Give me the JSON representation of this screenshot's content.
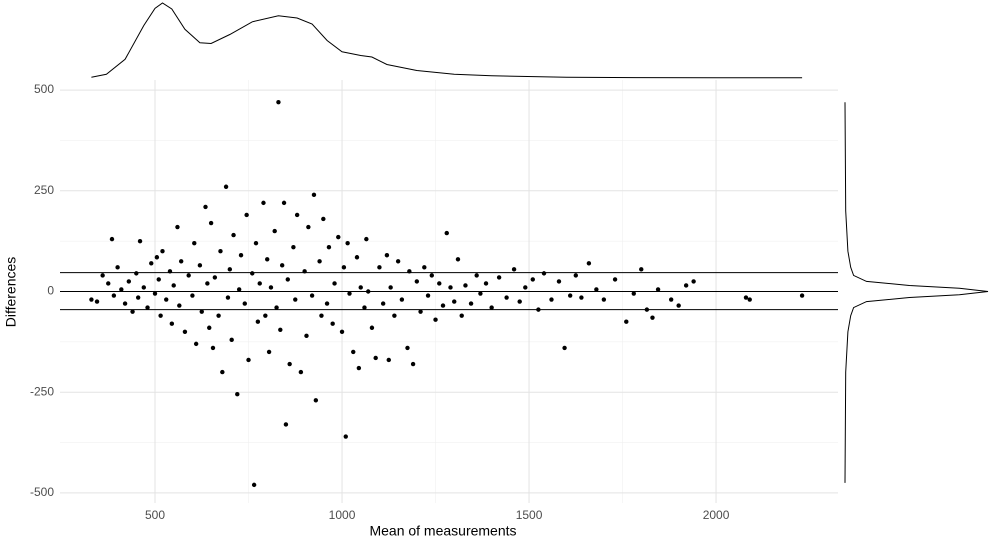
{
  "chart_data": {
    "type": "scatter",
    "x_label": "Mean of measurements",
    "y_label": "Differences",
    "xlim": [
      246,
      2326
    ],
    "ylim": [
      -525,
      525
    ],
    "xticks": [
      500,
      1000,
      1500,
      2000
    ],
    "yticks": [
      -500,
      -250,
      0,
      250,
      500
    ],
    "minor_xticks": [
      750,
      1250,
      1750
    ],
    "minor_yticks": [
      -375,
      -125,
      125,
      375
    ],
    "grid": true,
    "color": "#000000",
    "hlines": [
      47,
      0,
      -45
    ],
    "x": [
      330,
      345,
      360,
      375,
      385,
      390,
      400,
      410,
      420,
      430,
      440,
      450,
      455,
      460,
      470,
      480,
      490,
      500,
      505,
      510,
      515,
      520,
      530,
      540,
      545,
      550,
      560,
      565,
      570,
      580,
      590,
      600,
      605,
      610,
      620,
      625,
      635,
      640,
      645,
      650,
      655,
      660,
      670,
      675,
      680,
      690,
      695,
      700,
      705,
      710,
      720,
      725,
      730,
      740,
      745,
      750,
      760,
      765,
      770,
      775,
      780,
      790,
      795,
      800,
      805,
      810,
      820,
      825,
      830,
      835,
      840,
      845,
      850,
      855,
      860,
      870,
      875,
      880,
      890,
      900,
      905,
      910,
      920,
      925,
      930,
      940,
      945,
      950,
      960,
      965,
      975,
      980,
      990,
      1000,
      1005,
      1010,
      1015,
      1020,
      1030,
      1040,
      1045,
      1050,
      1060,
      1065,
      1070,
      1080,
      1090,
      1100,
      1110,
      1120,
      1125,
      1130,
      1140,
      1150,
      1160,
      1175,
      1180,
      1190,
      1200,
      1210,
      1220,
      1230,
      1240,
      1250,
      1260,
      1270,
      1280,
      1290,
      1300,
      1310,
      1320,
      1330,
      1345,
      1360,
      1370,
      1385,
      1400,
      1420,
      1440,
      1460,
      1475,
      1490,
      1510,
      1525,
      1540,
      1560,
      1580,
      1595,
      1610,
      1625,
      1640,
      1660,
      1680,
      1700,
      1730,
      1760,
      1780,
      1800,
      1815,
      1830,
      1845,
      1880,
      1900,
      1920,
      1940,
      2080,
      2090,
      2230
    ],
    "values": [
      -20,
      -25,
      40,
      20,
      130,
      -10,
      60,
      5,
      -30,
      25,
      -50,
      45,
      -15,
      125,
      10,
      -40,
      70,
      -5,
      85,
      30,
      -60,
      100,
      -20,
      50,
      -80,
      15,
      160,
      -35,
      75,
      -100,
      40,
      -10,
      120,
      -130,
      65,
      -50,
      210,
      20,
      -90,
      170,
      -140,
      35,
      -60,
      100,
      -200,
      260,
      -15,
      55,
      -120,
      140,
      -255,
      5,
      90,
      -30,
      190,
      -170,
      45,
      -480,
      120,
      -75,
      20,
      220,
      -60,
      80,
      -150,
      10,
      150,
      -40,
      470,
      -95,
      65,
      220,
      -330,
      30,
      -180,
      110,
      -20,
      190,
      -200,
      50,
      -110,
      160,
      -10,
      240,
      -270,
      75,
      -60,
      180,
      -30,
      110,
      -80,
      20,
      135,
      -100,
      60,
      -360,
      120,
      -5,
      -150,
      85,
      -190,
      10,
      -40,
      130,
      0,
      -90,
      -165,
      60,
      -30,
      90,
      -170,
      10,
      -60,
      75,
      -20,
      -140,
      50,
      -180,
      25,
      -50,
      60,
      -10,
      40,
      -70,
      20,
      -35,
      145,
      10,
      -25,
      80,
      -60,
      15,
      -30,
      40,
      -5,
      20,
      -40,
      35,
      -15,
      55,
      -25,
      10,
      30,
      -45,
      45,
      -20,
      25,
      -140,
      -10,
      40,
      -15,
      70,
      5,
      -20,
      30,
      -75,
      -5,
      55,
      -45,
      -65,
      5,
      -20,
      -35,
      15,
      25,
      -15,
      -20,
      -10
    ],
    "density_x": {
      "x": [
        330,
        370,
        420,
        470,
        500,
        520,
        545,
        580,
        620,
        650,
        700,
        760,
        830,
        880,
        920,
        960,
        1000,
        1050,
        1080,
        1120,
        1200,
        1300,
        1400,
        1600,
        1800,
        2000,
        2230
      ],
      "values": [
        0.01,
        0.05,
        0.25,
        0.7,
        0.93,
        1.0,
        0.92,
        0.65,
        0.47,
        0.46,
        0.58,
        0.75,
        0.83,
        0.8,
        0.72,
        0.5,
        0.35,
        0.3,
        0.28,
        0.18,
        0.1,
        0.05,
        0.03,
        0.01,
        0.005,
        0.003,
        0.002
      ]
    },
    "density_y": {
      "y": [
        -475,
        -200,
        -100,
        -60,
        -40,
        -25,
        -15,
        -8,
        0,
        8,
        15,
        25,
        40,
        60,
        100,
        200,
        470
      ],
      "values": [
        0,
        0.005,
        0.02,
        0.04,
        0.06,
        0.15,
        0.45,
        0.8,
        1.0,
        0.8,
        0.45,
        0.15,
        0.06,
        0.04,
        0.02,
        0.005,
        0
      ]
    }
  }
}
